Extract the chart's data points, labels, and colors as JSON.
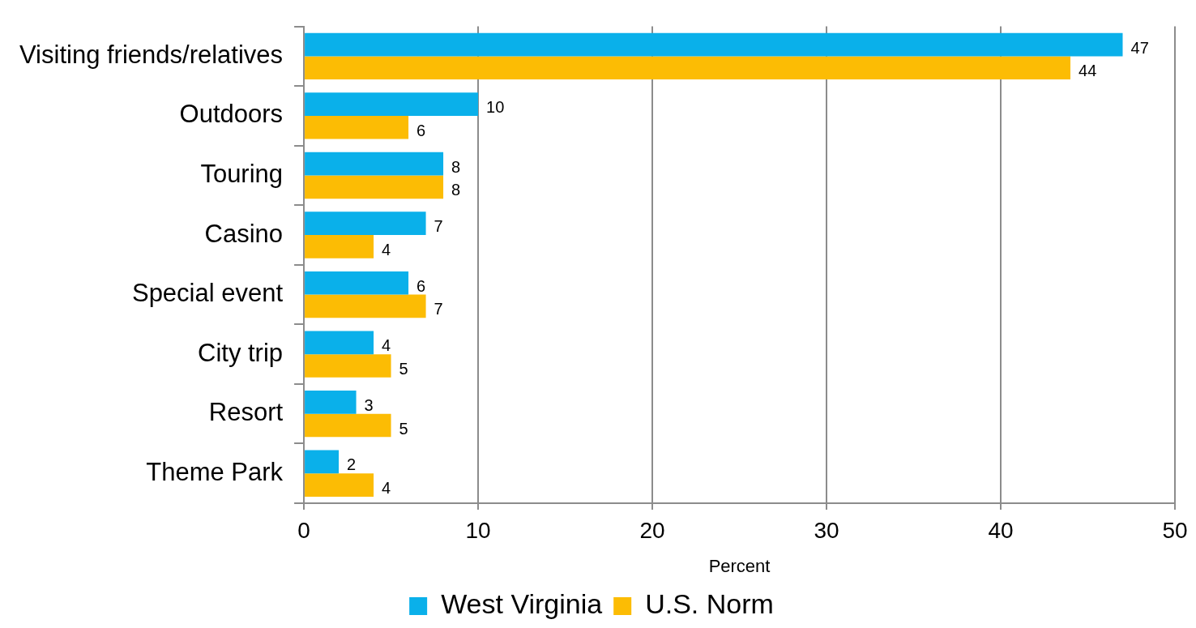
{
  "chart_data": {
    "type": "bar",
    "orientation": "horizontal",
    "categories": [
      "Visiting friends/relatives",
      "Outdoors",
      "Touring",
      "Casino",
      "Special event",
      "City trip",
      "Resort",
      "Theme Park"
    ],
    "series": [
      {
        "name": "West Virginia",
        "color": "#0ab0ea",
        "values": [
          47,
          10,
          8,
          7,
          6,
          4,
          3,
          2
        ]
      },
      {
        "name": "U.S. Norm",
        "color": "#fcbc04",
        "values": [
          44,
          6,
          8,
          4,
          7,
          5,
          5,
          4
        ]
      }
    ],
    "xlabel": "Percent",
    "xlim": [
      0,
      50
    ],
    "xticks": [
      0,
      10,
      20,
      30,
      40,
      50
    ],
    "grid": "x",
    "legend": "bottom",
    "data_labels": true
  }
}
